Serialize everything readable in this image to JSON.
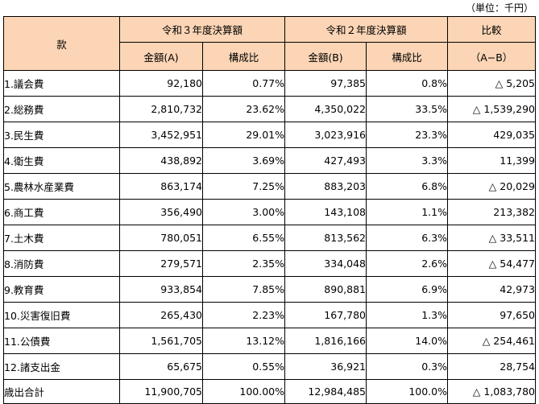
{
  "unit_note": "（単位：千円）",
  "header": {
    "category": "款",
    "r3_group": "令和３年度決算額",
    "r2_group": "令和２年度決算額",
    "comparison": "比較",
    "r3_amount": "金額(A)",
    "r3_ratio": "構成比",
    "r2_amount": "金額(B)",
    "r2_ratio": "構成比",
    "comparison_sub": "（A−B）"
  },
  "rows": [
    {
      "name": "1.議会費",
      "r3_amount": "92,180",
      "r3_ratio": "0.77%",
      "r2_amount": "97,385",
      "r2_ratio": "0.8%",
      "diff": "△ 5,205"
    },
    {
      "name": "2.総務費",
      "r3_amount": "2,810,732",
      "r3_ratio": "23.62%",
      "r2_amount": "4,350,022",
      "r2_ratio": "33.5%",
      "diff": "△ 1,539,290"
    },
    {
      "name": "3.民生費",
      "r3_amount": "3,452,951",
      "r3_ratio": "29.01%",
      "r2_amount": "3,023,916",
      "r2_ratio": "23.3%",
      "diff": "429,035"
    },
    {
      "name": "4.衛生費",
      "r3_amount": "438,892",
      "r3_ratio": "3.69%",
      "r2_amount": "427,493",
      "r2_ratio": "3.3%",
      "diff": "11,399"
    },
    {
      "name": "5.農林水産業費",
      "r3_amount": "863,174",
      "r3_ratio": "7.25%",
      "r2_amount": "883,203",
      "r2_ratio": "6.8%",
      "diff": "△ 20,029"
    },
    {
      "name": "6.商工費",
      "r3_amount": "356,490",
      "r3_ratio": "3.00%",
      "r2_amount": "143,108",
      "r2_ratio": "1.1%",
      "diff": "213,382"
    },
    {
      "name": "7.土木費",
      "r3_amount": "780,051",
      "r3_ratio": "6.55%",
      "r2_amount": "813,562",
      "r2_ratio": "6.3%",
      "diff": "△ 33,511"
    },
    {
      "name": "8.消防費",
      "r3_amount": "279,571",
      "r3_ratio": "2.35%",
      "r2_amount": "334,048",
      "r2_ratio": "2.6%",
      "diff": "△ 54,477"
    },
    {
      "name": "9.教育費",
      "r3_amount": "933,854",
      "r3_ratio": "7.85%",
      "r2_amount": "890,881",
      "r2_ratio": "6.9%",
      "diff": "42,973"
    },
    {
      "name": "10.災害復旧費",
      "r3_amount": "265,430",
      "r3_ratio": "2.23%",
      "r2_amount": "167,780",
      "r2_ratio": "1.3%",
      "diff": "97,650"
    },
    {
      "name": "11.公債費",
      "r3_amount": "1,561,705",
      "r3_ratio": "13.12%",
      "r2_amount": "1,816,166",
      "r2_ratio": "14.0%",
      "diff": "△ 254,461"
    },
    {
      "name": "12.諸支出金",
      "r3_amount": "65,675",
      "r3_ratio": "0.55%",
      "r2_amount": "36,921",
      "r2_ratio": "0.3%",
      "diff": "28,754"
    }
  ],
  "total": {
    "name": "歳出合計",
    "r3_amount": "11,900,705",
    "r3_ratio": "100.00%",
    "r2_amount": "12,984,485",
    "r2_ratio": "100.0%",
    "diff": "△ 1,083,780"
  },
  "colors": {
    "header_bg": "#fbd5b5",
    "border": "#000000"
  }
}
